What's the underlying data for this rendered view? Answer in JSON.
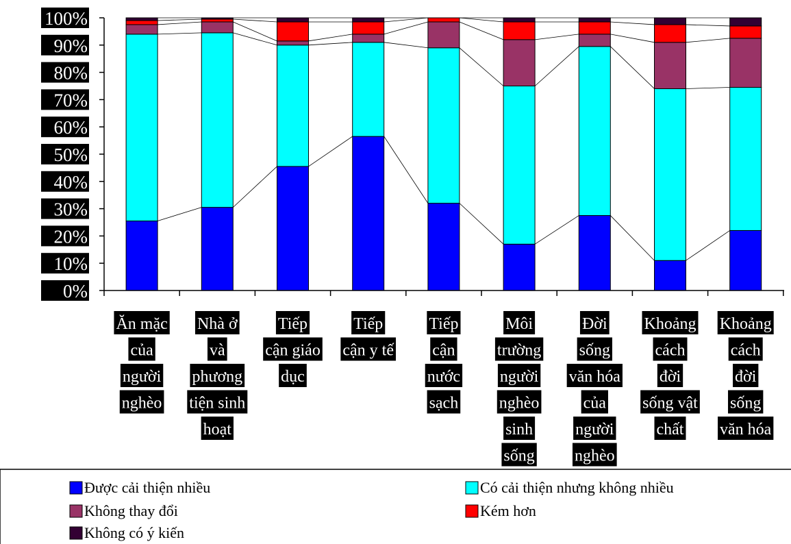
{
  "chart_data": {
    "type": "bar",
    "stacked": true,
    "normalized": true,
    "series_lines": true,
    "categories": [
      [
        "Ăn mặc",
        "của",
        "người",
        "nghèo"
      ],
      [
        "Nhà ở",
        "và",
        "phương",
        "tiện sinh",
        "hoạt"
      ],
      [
        "Tiếp",
        "cận giáo",
        "dục"
      ],
      [
        "Tiếp",
        "cận y tế"
      ],
      [
        "Tiếp",
        "cận",
        "nước",
        "sạch"
      ],
      [
        "Môi",
        "trường",
        "người",
        "nghèo",
        "sinh",
        "sống"
      ],
      [
        "Đời",
        "sống",
        "văn hóa",
        "của",
        "người",
        "nghèo"
      ],
      [
        "Khoảng",
        "cách",
        "đời",
        "sống vật",
        "chất"
      ],
      [
        "Khoảng",
        "cách",
        "đời",
        "sống",
        "văn hóa"
      ]
    ],
    "series": [
      {
        "name": "Được cải thiện nhiều",
        "color": "#0000ff",
        "values": [
          25.5,
          30.5,
          45.5,
          56.5,
          32,
          17,
          27.5,
          11,
          22
        ]
      },
      {
        "name": "Có cải thiện nhưng không nhiều",
        "color": "#00ffff",
        "values": [
          68.5,
          64,
          44.5,
          34.5,
          57,
          58,
          62,
          63,
          52.5
        ]
      },
      {
        "name": "Không thay đổi",
        "color": "#993366",
        "values": [
          3.5,
          4,
          1.5,
          3,
          9.5,
          17,
          4.5,
          17,
          18
        ]
      },
      {
        "name": "Kém hơn",
        "color": "#ff0000",
        "values": [
          1.5,
          1,
          7,
          4.5,
          1.5,
          6.5,
          4.5,
          6.5,
          4.5
        ]
      },
      {
        "name": "Không có ý kiến",
        "color": "#330033",
        "values": [
          1,
          0.5,
          1.5,
          1.5,
          0,
          1.5,
          1.5,
          2.5,
          3
        ]
      }
    ],
    "ylim": [
      0,
      100
    ],
    "yticks": [
      "0%",
      "10%",
      "20%",
      "30%",
      "40%",
      "50%",
      "60%",
      "70%",
      "80%",
      "90%",
      "100%"
    ],
    "title": "",
    "xlabel": "",
    "ylabel": "",
    "legend_position": "bottom",
    "grid": false
  }
}
